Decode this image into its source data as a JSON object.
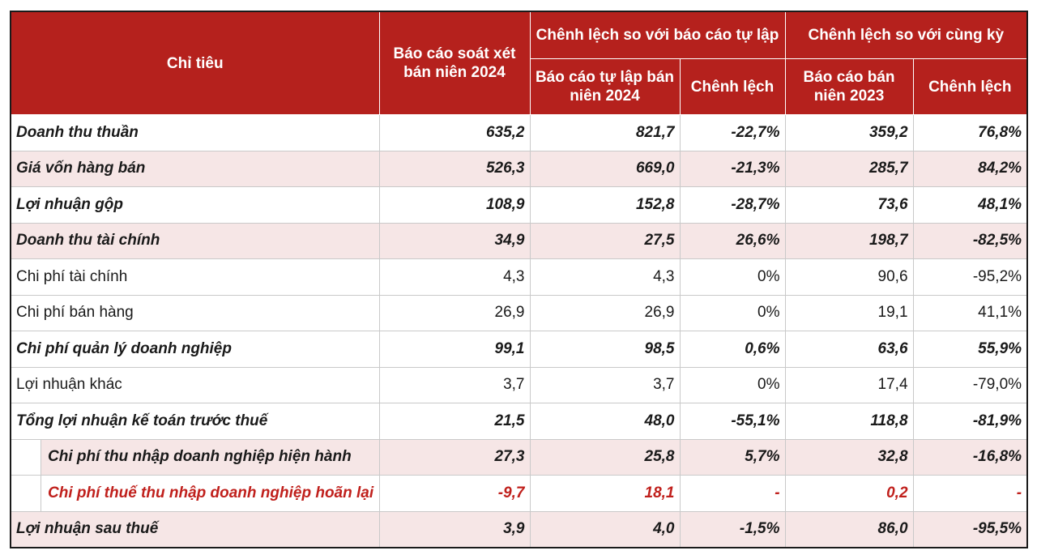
{
  "header": {
    "indicator": "Chỉ tiêu",
    "reviewed": "Báo cáo soát xét bán niên 2024",
    "group_self": "Chênh lệch so với báo cáo tự lập",
    "group_yoy": "Chênh lệch so với cùng kỳ",
    "self_report": "Báo cáo tự lập bán niên 2024",
    "diff_self": "Chênh lệch",
    "report_2023": "Báo cáo bán niên 2023",
    "diff_yoy": "Chênh lệch"
  },
  "rows": [
    {
      "label": "Doanh thu thuần",
      "reviewed": "635,2",
      "self": "821,7",
      "diff_self": "-22,7%",
      "prev": "359,2",
      "diff_yoy": "76,8%"
    },
    {
      "label": "Giá vốn hàng bán",
      "reviewed": "526,3",
      "self": "669,0",
      "diff_self": "-21,3%",
      "prev": "285,7",
      "diff_yoy": "84,2%"
    },
    {
      "label": "Lợi nhuận gộp",
      "reviewed": "108,9",
      "self": "152,8",
      "diff_self": "-28,7%",
      "prev": "73,6",
      "diff_yoy": "48,1%"
    },
    {
      "label": "Doanh thu tài chính",
      "reviewed": "34,9",
      "self": "27,5",
      "diff_self": "26,6%",
      "prev": "198,7",
      "diff_yoy": "-82,5%"
    },
    {
      "label": "Chi phí tài chính",
      "reviewed": "4,3",
      "self": "4,3",
      "diff_self": "0%",
      "prev": "90,6",
      "diff_yoy": "-95,2%"
    },
    {
      "label": "Chi phí bán hàng",
      "reviewed": "26,9",
      "self": "26,9",
      "diff_self": "0%",
      "prev": "19,1",
      "diff_yoy": "41,1%"
    },
    {
      "label": "Chi phí quản lý doanh nghiệp",
      "reviewed": "99,1",
      "self": "98,5",
      "diff_self": "0,6%",
      "prev": "63,6",
      "diff_yoy": "55,9%"
    },
    {
      "label": "Lợi nhuận khác",
      "reviewed": "3,7",
      "self": "3,7",
      "diff_self": "0%",
      "prev": "17,4",
      "diff_yoy": "-79,0%"
    },
    {
      "label": "Tổng lợi nhuận kế toán trước thuế",
      "reviewed": "21,5",
      "self": "48,0",
      "diff_self": "-55,1%",
      "prev": "118,8",
      "diff_yoy": "-81,9%"
    },
    {
      "label": "Chi phí thu nhập doanh nghiệp hiện hành",
      "reviewed": "27,3",
      "self": "25,8",
      "diff_self": "5,7%",
      "prev": "32,8",
      "diff_yoy": "-16,8%"
    },
    {
      "label": "Chi phí thuế thu nhập doanh nghiệp hoãn lại",
      "reviewed": "-9,7",
      "self": "18,1",
      "diff_self": "-",
      "prev": "0,2",
      "diff_yoy": "-"
    },
    {
      "label": "Lợi nhuận sau thuế",
      "reviewed": "3,9",
      "self": "4,0",
      "diff_self": "-1,5%",
      "prev": "86,0",
      "diff_yoy": "-95,5%"
    }
  ],
  "colors": {
    "header_bg": "#b5211d",
    "alt_row": "#f6e6e6",
    "highlight_text": "#c0201c"
  }
}
